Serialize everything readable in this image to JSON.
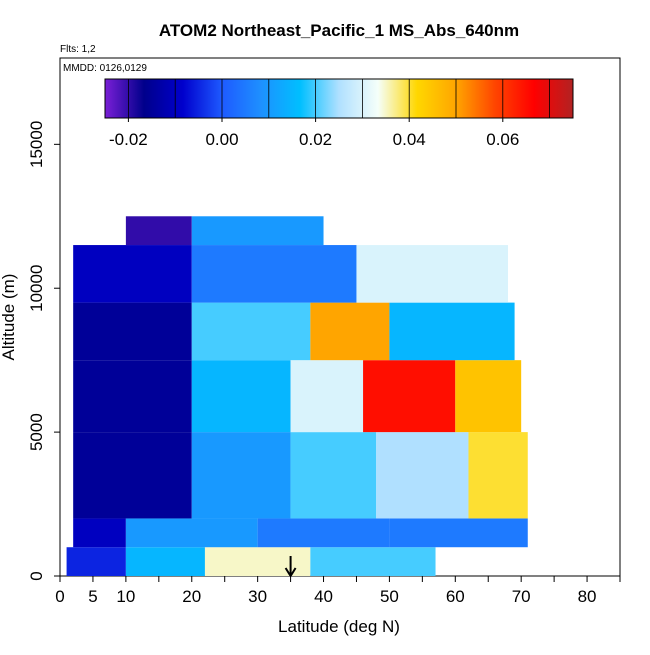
{
  "chart_data": {
    "type": "heatmap",
    "title": "ATOM2 Northeast_Pacific_1 MS_Abs_640nm",
    "subtitle_flts": "Flts: 1,2",
    "subtitle_mmdd": "MMDD: 0126,0129",
    "xlabel": "Latitude (deg N)",
    "ylabel": "Altitude (m)",
    "xlim": [
      0,
      85
    ],
    "ylim": [
      0,
      18000
    ],
    "xticks": [
      0,
      5,
      10,
      20,
      30,
      40,
      50,
      60,
      70,
      80
    ],
    "yticks": [
      0,
      5000,
      10000,
      15000
    ],
    "ytick_labels": [
      "0",
      "5000",
      "10000",
      "15000"
    ],
    "colorbar": {
      "min": -0.025,
      "max": 0.075,
      "ticks": [
        -0.02,
        0.0,
        0.02,
        0.04,
        0.06
      ],
      "tick_labels": [
        "-0.02",
        "0.00",
        "0.02",
        "0.04",
        "0.06"
      ],
      "colors": [
        "#7a1fd6",
        "#00008b",
        "#0000cd",
        "#1e5aff",
        "#1e90ff",
        "#00bfff",
        "#b0e0ff",
        "#f5fffa",
        "#ffd700",
        "#ffa500",
        "#ff4500",
        "#ff0000",
        "#b22222"
      ]
    },
    "marker_latitude": 35,
    "cells": [
      {
        "lat": [
          1,
          10
        ],
        "alt": [
          0,
          1000
        ],
        "value": -0.005
      },
      {
        "lat": [
          10,
          22
        ],
        "alt": [
          0,
          1000
        ],
        "value": 0.015
      },
      {
        "lat": [
          22,
          38
        ],
        "alt": [
          0,
          1000
        ],
        "value": 0.035
      },
      {
        "lat": [
          38,
          57
        ],
        "alt": [
          0,
          1000
        ],
        "value": 0.02
      },
      {
        "lat": [
          2,
          10
        ],
        "alt": [
          1000,
          2000
        ],
        "value": -0.01
      },
      {
        "lat": [
          10,
          30
        ],
        "alt": [
          1000,
          2000
        ],
        "value": 0.01
      },
      {
        "lat": [
          30,
          50
        ],
        "alt": [
          1000,
          2000
        ],
        "value": 0.005
      },
      {
        "lat": [
          50,
          71
        ],
        "alt": [
          1000,
          2000
        ],
        "value": 0.005
      },
      {
        "lat": [
          2,
          20
        ],
        "alt": [
          2000,
          5000
        ],
        "value": -0.015
      },
      {
        "lat": [
          20,
          35
        ],
        "alt": [
          2000,
          5000
        ],
        "value": 0.01
      },
      {
        "lat": [
          35,
          48
        ],
        "alt": [
          2000,
          5000
        ],
        "value": 0.02
      },
      {
        "lat": [
          48,
          62
        ],
        "alt": [
          2000,
          5000
        ],
        "value": 0.025
      },
      {
        "lat": [
          62,
          71
        ],
        "alt": [
          2000,
          5000
        ],
        "value": 0.04
      },
      {
        "lat": [
          2,
          20
        ],
        "alt": [
          5000,
          7500
        ],
        "value": -0.015
      },
      {
        "lat": [
          20,
          35
        ],
        "alt": [
          5000,
          7500
        ],
        "value": 0.015
      },
      {
        "lat": [
          35,
          46
        ],
        "alt": [
          5000,
          7500
        ],
        "value": 0.03
      },
      {
        "lat": [
          46,
          60
        ],
        "alt": [
          5000,
          7500
        ],
        "value": 0.065
      },
      {
        "lat": [
          60,
          70
        ],
        "alt": [
          5000,
          7500
        ],
        "value": 0.045
      },
      {
        "lat": [
          2,
          20
        ],
        "alt": [
          7500,
          9500
        ],
        "value": -0.015
      },
      {
        "lat": [
          20,
          38
        ],
        "alt": [
          7500,
          9500
        ],
        "value": 0.02
      },
      {
        "lat": [
          38,
          50
        ],
        "alt": [
          7500,
          9500
        ],
        "value": 0.05
      },
      {
        "lat": [
          50,
          69
        ],
        "alt": [
          7500,
          9500
        ],
        "value": 0.015
      },
      {
        "lat": [
          2,
          20
        ],
        "alt": [
          9500,
          11500
        ],
        "value": -0.01
      },
      {
        "lat": [
          20,
          45
        ],
        "alt": [
          9500,
          11500
        ],
        "value": 0.005
      },
      {
        "lat": [
          45,
          68
        ],
        "alt": [
          9500,
          11500
        ],
        "value": 0.03
      },
      {
        "lat": [
          10,
          20
        ],
        "alt": [
          11500,
          12500
        ],
        "value": -0.02
      },
      {
        "lat": [
          20,
          40
        ],
        "alt": [
          11500,
          12500
        ],
        "value": 0.01
      }
    ]
  }
}
